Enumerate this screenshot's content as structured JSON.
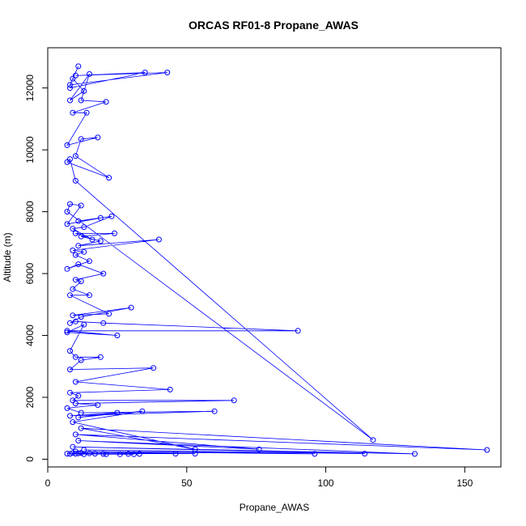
{
  "chart_data": {
    "type": "line",
    "title": "ORCAS RF01-8 Propane_AWAS",
    "xlabel": "Propane_AWAS",
    "ylabel": "Altitude (m)",
    "xlim": [
      0,
      163
    ],
    "ylim": [
      -250,
      13300
    ],
    "xticks": [
      0,
      50,
      100,
      150
    ],
    "yticks": [
      0,
      2000,
      4000,
      6000,
      8000,
      10000,
      12000
    ],
    "grid": false,
    "series_color": "#0000ff",
    "series": [
      {
        "points": [
          [
            8,
            12000
          ],
          [
            35,
            12500
          ],
          [
            10,
            12400
          ],
          [
            43,
            12500
          ],
          [
            8,
            12100
          ],
          [
            11,
            12700
          ],
          [
            9,
            12300
          ],
          [
            13,
            11900
          ],
          [
            8,
            11600
          ],
          [
            15,
            12450
          ],
          [
            12,
            11600
          ],
          [
            21,
            11550
          ],
          [
            9,
            11200
          ],
          [
            14,
            11200
          ],
          [
            7,
            10150
          ],
          [
            18,
            10400
          ],
          [
            12,
            10350
          ],
          [
            10,
            9800
          ],
          [
            22,
            9100
          ],
          [
            7,
            9600
          ],
          [
            8,
            9700
          ],
          [
            10,
            9000
          ],
          [
            117,
            620
          ],
          [
            7,
            8000
          ],
          [
            8,
            8250
          ],
          [
            12,
            8200
          ],
          [
            7,
            7600
          ],
          [
            19,
            7800
          ],
          [
            11,
            7700
          ],
          [
            23,
            7850
          ],
          [
            13,
            7500
          ],
          [
            9,
            7450
          ],
          [
            16,
            7100
          ],
          [
            10,
            7300
          ],
          [
            24,
            7300
          ],
          [
            12,
            7200
          ],
          [
            19,
            7050
          ],
          [
            11,
            6900
          ],
          [
            40,
            7100
          ],
          [
            9,
            6750
          ],
          [
            13,
            6700
          ],
          [
            10,
            6600
          ],
          [
            15,
            6400
          ],
          [
            7,
            6150
          ],
          [
            11,
            6300
          ],
          [
            20,
            6000
          ],
          [
            10,
            5800
          ],
          [
            12,
            5750
          ],
          [
            9,
            5500
          ],
          [
            15,
            5300
          ],
          [
            8,
            5300
          ],
          [
            22,
            4700
          ],
          [
            9,
            4650
          ],
          [
            30,
            4900
          ],
          [
            12,
            4600
          ],
          [
            8,
            4400
          ],
          [
            10,
            4450
          ],
          [
            20,
            4400
          ],
          [
            90,
            4150
          ],
          [
            7,
            4150
          ],
          [
            25,
            4000
          ],
          [
            7,
            4100
          ],
          [
            13,
            4350
          ],
          [
            8,
            3500
          ],
          [
            10,
            3300
          ],
          [
            19,
            3300
          ],
          [
            12,
            3200
          ],
          [
            8,
            2900
          ],
          [
            38,
            2950
          ],
          [
            10,
            2500
          ],
          [
            44,
            2250
          ],
          [
            8,
            2150
          ],
          [
            11,
            2050
          ],
          [
            9,
            1900
          ],
          [
            67,
            1900
          ],
          [
            10,
            1800
          ],
          [
            18,
            1750
          ],
          [
            7,
            1650
          ],
          [
            12,
            1500
          ],
          [
            60,
            1550
          ],
          [
            8,
            1400
          ],
          [
            25,
            1500
          ],
          [
            11,
            1350
          ],
          [
            34,
            1550
          ],
          [
            9,
            1200
          ],
          [
            53,
            320
          ],
          [
            12,
            1000
          ],
          [
            158,
            300
          ],
          [
            10,
            800
          ],
          [
            76,
            320
          ],
          [
            11,
            600
          ],
          [
            132,
            170
          ],
          [
            9,
            400
          ],
          [
            114,
            180
          ],
          [
            13,
            300
          ],
          [
            96,
            170
          ],
          [
            10,
            250
          ],
          [
            53,
            180
          ],
          [
            12,
            200
          ],
          [
            46,
            180
          ],
          [
            7,
            180
          ],
          [
            33,
            170
          ],
          [
            9,
            200
          ],
          [
            29,
            170
          ],
          [
            15,
            190
          ],
          [
            26,
            160
          ],
          [
            10,
            180
          ],
          [
            20,
            170
          ],
          [
            13,
            160
          ],
          [
            17,
            180
          ],
          [
            8,
            170
          ],
          [
            31,
            160
          ],
          [
            11,
            190
          ],
          [
            21,
            160
          ]
        ]
      }
    ]
  }
}
